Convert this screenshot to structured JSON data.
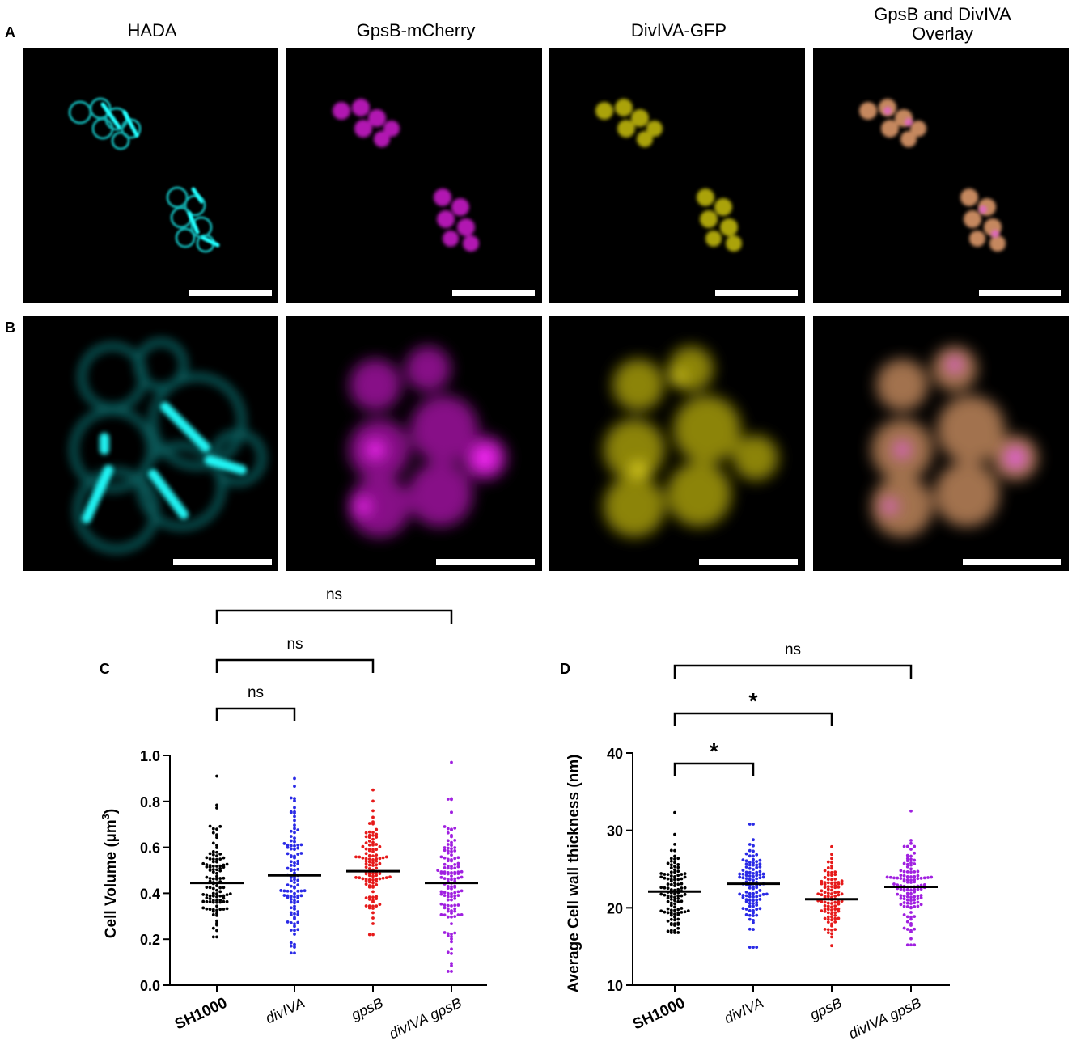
{
  "figure": {
    "panel_a_letter": "A",
    "panel_b_letter": "B",
    "panel_c_letter": "C",
    "panel_d_letter": "D",
    "columns": [
      {
        "title_line1": "HADA",
        "title_line2": "",
        "color": "#18d8d8"
      },
      {
        "title_line1": "GpsB-mCherry",
        "title_line2": "",
        "color": "#d21ad2"
      },
      {
        "title_line1": "DivIVA-GFP",
        "title_line2": "",
        "color": "#d6cc10"
      },
      {
        "title_line1": "GpsB and DivIVA",
        "title_line2": "Overlay",
        "color": "#e8a070"
      }
    ],
    "overlay_accent": "#e860e0"
  },
  "chart_data": [
    {
      "type": "scatter",
      "panel": "C",
      "ylabel_main": "Cell Volume (µm",
      "ylabel_sup": "3",
      "ylabel_end": ")",
      "ylim": [
        0.0,
        1.0
      ],
      "yticks": [
        "0.0",
        "0.2",
        "0.4",
        "0.6",
        "0.8",
        "1.0"
      ],
      "categories": [
        "SH1000",
        "divIVA",
        "gpsB",
        "divIVA gpsB"
      ],
      "category_styles": [
        "bold",
        "italic",
        "italic",
        "italic"
      ],
      "series": [
        {
          "color": "#000000",
          "mean": 0.445,
          "min": 0.21,
          "max": 0.91,
          "n": 110,
          "spread": 0.11
        },
        {
          "color": "#2a2ae6",
          "mean": 0.478,
          "min": 0.14,
          "max": 0.9,
          "n": 110,
          "spread": 0.15
        },
        {
          "color": "#e61a1a",
          "mean": 0.496,
          "min": 0.22,
          "max": 0.85,
          "n": 110,
          "spread": 0.11
        },
        {
          "color": "#a020e0",
          "mean": 0.445,
          "min": 0.06,
          "max": 0.97,
          "n": 130,
          "spread": 0.16
        }
      ],
      "comparisons": [
        {
          "from": 0,
          "to": 1,
          "label": "ns"
        },
        {
          "from": 0,
          "to": 2,
          "label": "ns"
        },
        {
          "from": 0,
          "to": 3,
          "label": "ns"
        }
      ]
    },
    {
      "type": "scatter",
      "panel": "D",
      "ylabel_main": "Average Cell wall thickness (nm)",
      "ylim": [
        10,
        40
      ],
      "yticks": [
        "10",
        "20",
        "30",
        "40"
      ],
      "categories": [
        "SH1000",
        "divIVA",
        "gpsB",
        "divIVA gpsB"
      ],
      "category_styles": [
        "bold",
        "italic",
        "italic",
        "italic"
      ],
      "series": [
        {
          "color": "#000000",
          "mean": 22.1,
          "min": 16.8,
          "max": 32.3,
          "n": 110,
          "spread": 2.7
        },
        {
          "color": "#2a2ae6",
          "mean": 23.1,
          "min": 14.9,
          "max": 30.8,
          "n": 110,
          "spread": 3.0
        },
        {
          "color": "#e61a1a",
          "mean": 21.1,
          "min": 15.1,
          "max": 27.9,
          "n": 100,
          "spread": 2.4
        },
        {
          "color": "#a020e0",
          "mean": 22.7,
          "min": 15.2,
          "max": 32.5,
          "n": 120,
          "spread": 3.0
        }
      ],
      "comparisons": [
        {
          "from": 0,
          "to": 1,
          "label": "*"
        },
        {
          "from": 0,
          "to": 2,
          "label": "*"
        },
        {
          "from": 0,
          "to": 3,
          "label": "ns"
        }
      ]
    }
  ]
}
